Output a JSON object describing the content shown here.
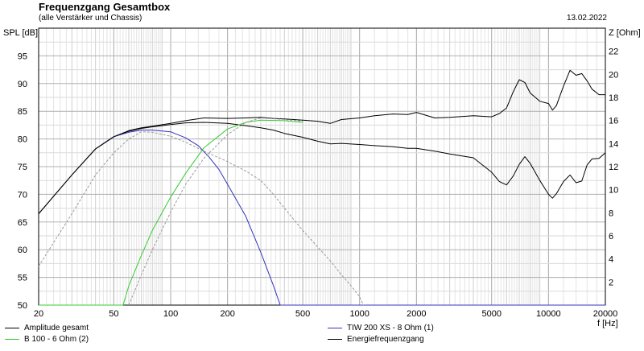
{
  "header": {
    "title": "Frequenzgang Gesamtbox",
    "subtitle": "(alle Verstärker und Chassis)",
    "date": "13.02.2022"
  },
  "chart_data": {
    "type": "line",
    "xscale": "log",
    "xlim": [
      20,
      20000
    ],
    "ylim_left": [
      50,
      100
    ],
    "ylim_right": [
      0,
      24
    ],
    "ylabel_left": "SPL [dB]",
    "ylabel_right": "Z [Ohm]",
    "xlabel": "f [Hz]",
    "x_ticks": [
      20,
      50,
      100,
      200,
      500,
      1000,
      2000,
      5000,
      10000,
      20000
    ],
    "y_ticks_left": [
      50,
      55,
      60,
      65,
      70,
      75,
      80,
      85,
      90,
      95
    ],
    "y_ticks_right": [
      2,
      4,
      6,
      8,
      10,
      12,
      14,
      16,
      18,
      20,
      22
    ],
    "grid": true,
    "series": [
      {
        "name": "Amplitude gesamt",
        "color": "#000000",
        "dash": "none",
        "points": [
          [
            20,
            66.5
          ],
          [
            30,
            73.5
          ],
          [
            40,
            78.2
          ],
          [
            50,
            80.4
          ],
          [
            60,
            81.4
          ],
          [
            70,
            81.9
          ],
          [
            80,
            82.2
          ],
          [
            100,
            82.6
          ],
          [
            120,
            82.9
          ],
          [
            150,
            83.0
          ],
          [
            200,
            82.8
          ],
          [
            250,
            82.4
          ],
          [
            300,
            82.0
          ],
          [
            350,
            81.6
          ],
          [
            400,
            81.0
          ],
          [
            500,
            80.3
          ],
          [
            600,
            79.6
          ],
          [
            700,
            79.1
          ],
          [
            800,
            79.2
          ],
          [
            1000,
            79.0
          ],
          [
            1200,
            78.8
          ],
          [
            1500,
            78.6
          ],
          [
            1800,
            78.3
          ],
          [
            2000,
            78.3
          ],
          [
            2500,
            77.8
          ],
          [
            3000,
            77.3
          ],
          [
            4000,
            76.6
          ],
          [
            5000,
            74.0
          ],
          [
            5500,
            72.3
          ],
          [
            6000,
            71.7
          ],
          [
            6500,
            73.3
          ],
          [
            7000,
            75.4
          ],
          [
            7500,
            76.8
          ],
          [
            8000,
            75.6
          ],
          [
            9000,
            72.5
          ],
          [
            10000,
            70.0
          ],
          [
            10500,
            69.3
          ],
          [
            11000,
            70.1
          ],
          [
            12000,
            72.3
          ],
          [
            13000,
            73.5
          ],
          [
            14000,
            72.1
          ],
          [
            15000,
            72.4
          ],
          [
            16000,
            75.3
          ],
          [
            17000,
            76.4
          ],
          [
            18500,
            76.5
          ],
          [
            20000,
            77.5
          ]
        ]
      },
      {
        "name": "B 100 - 6 Ohm (2)",
        "color": "#33cc33",
        "dash": "none",
        "points": [
          [
            20,
            50
          ],
          [
            40,
            50
          ],
          [
            56,
            50
          ],
          [
            60,
            53.5
          ],
          [
            70,
            59.0
          ],
          [
            80,
            63.5
          ],
          [
            100,
            69.5
          ],
          [
            120,
            73.8
          ],
          [
            150,
            78.4
          ],
          [
            200,
            81.8
          ],
          [
            250,
            83.0
          ],
          [
            300,
            83.4
          ],
          [
            400,
            83.3
          ],
          [
            500,
            83.0
          ]
        ]
      },
      {
        "name": "TIW 200 XS - 8 Ohm (1)",
        "color": "#3333bb",
        "dash": "none",
        "points": [
          [
            40,
            78.2
          ],
          [
            50,
            80.4
          ],
          [
            60,
            81.2
          ],
          [
            70,
            81.6
          ],
          [
            80,
            81.6
          ],
          [
            100,
            81.3
          ],
          [
            120,
            80.2
          ],
          [
            140,
            78.8
          ],
          [
            160,
            76.7
          ],
          [
            180,
            74.5
          ],
          [
            200,
            71.8
          ],
          [
            250,
            66.0
          ],
          [
            300,
            59.5
          ],
          [
            350,
            53.5
          ],
          [
            380,
            50
          ],
          [
            20000,
            50
          ]
        ]
      },
      {
        "name": "Energiefrequenzgang",
        "color": "#000000",
        "dash": "none",
        "points": [
          [
            20,
            66.5
          ],
          [
            30,
            73.5
          ],
          [
            40,
            78.2
          ],
          [
            50,
            80.4
          ],
          [
            60,
            81.5
          ],
          [
            70,
            82.0
          ],
          [
            80,
            82.3
          ],
          [
            100,
            82.8
          ],
          [
            120,
            83.3
          ],
          [
            150,
            83.8
          ],
          [
            200,
            83.7
          ],
          [
            250,
            83.8
          ],
          [
            300,
            83.9
          ],
          [
            350,
            83.7
          ],
          [
            400,
            83.6
          ],
          [
            500,
            83.4
          ],
          [
            600,
            83.2
          ],
          [
            700,
            82.8
          ],
          [
            800,
            83.5
          ],
          [
            1000,
            83.8
          ],
          [
            1200,
            84.2
          ],
          [
            1500,
            84.5
          ],
          [
            1800,
            84.4
          ],
          [
            2000,
            84.8
          ],
          [
            2500,
            83.8
          ],
          [
            3000,
            83.9
          ],
          [
            4000,
            84.2
          ],
          [
            5000,
            84.0
          ],
          [
            5500,
            84.6
          ],
          [
            6000,
            85.6
          ],
          [
            6500,
            88.5
          ],
          [
            7000,
            90.7
          ],
          [
            7500,
            90.2
          ],
          [
            8000,
            88.3
          ],
          [
            9000,
            86.8
          ],
          [
            10000,
            86.4
          ],
          [
            10500,
            85.2
          ],
          [
            11000,
            86.0
          ],
          [
            12000,
            89.5
          ],
          [
            13000,
            92.4
          ],
          [
            14000,
            91.5
          ],
          [
            15000,
            91.8
          ],
          [
            16000,
            90.5
          ],
          [
            17000,
            89.0
          ],
          [
            18500,
            88.0
          ],
          [
            20000,
            88.0
          ]
        ]
      },
      {
        "name": "",
        "color": "#999999",
        "dash": "3,2",
        "points": [
          [
            20,
            57.0
          ],
          [
            30,
            66.5
          ],
          [
            40,
            73.5
          ],
          [
            50,
            77.5
          ],
          [
            60,
            80.0
          ],
          [
            70,
            81.3
          ],
          [
            80,
            81.2
          ],
          [
            100,
            80.5
          ],
          [
            120,
            79.4
          ],
          [
            150,
            77.8
          ],
          [
            200,
            75.9
          ],
          [
            250,
            74.2
          ],
          [
            300,
            72.5
          ],
          [
            350,
            70.0
          ],
          [
            400,
            67.5
          ],
          [
            500,
            63.5
          ],
          [
            600,
            60.5
          ],
          [
            700,
            58.0
          ],
          [
            800,
            55.5
          ],
          [
            900,
            53.5
          ],
          [
            1000,
            51.5
          ],
          [
            1050,
            50
          ]
        ]
      },
      {
        "name": "",
        "color": "#999999",
        "dash": "3,2",
        "points": [
          [
            60,
            50
          ],
          [
            70,
            55.5
          ],
          [
            80,
            60.0
          ],
          [
            100,
            66.8
          ],
          [
            120,
            71.8
          ],
          [
            150,
            76.5
          ],
          [
            200,
            80.8
          ],
          [
            250,
            83.0
          ],
          [
            300,
            83.8
          ],
          [
            400,
            83.5
          ],
          [
            500,
            83.2
          ]
        ]
      }
    ]
  },
  "legend": {
    "items": [
      {
        "label": "Amplitude gesamt",
        "color": "#000000"
      },
      {
        "label": "TIW 200 XS - 8 Ohm (1)",
        "color": "#3333bb"
      },
      {
        "label": "B 100 - 6 Ohm (2)",
        "color": "#33cc33"
      },
      {
        "label": "Energiefrequenzgang",
        "color": "#000000"
      }
    ]
  }
}
